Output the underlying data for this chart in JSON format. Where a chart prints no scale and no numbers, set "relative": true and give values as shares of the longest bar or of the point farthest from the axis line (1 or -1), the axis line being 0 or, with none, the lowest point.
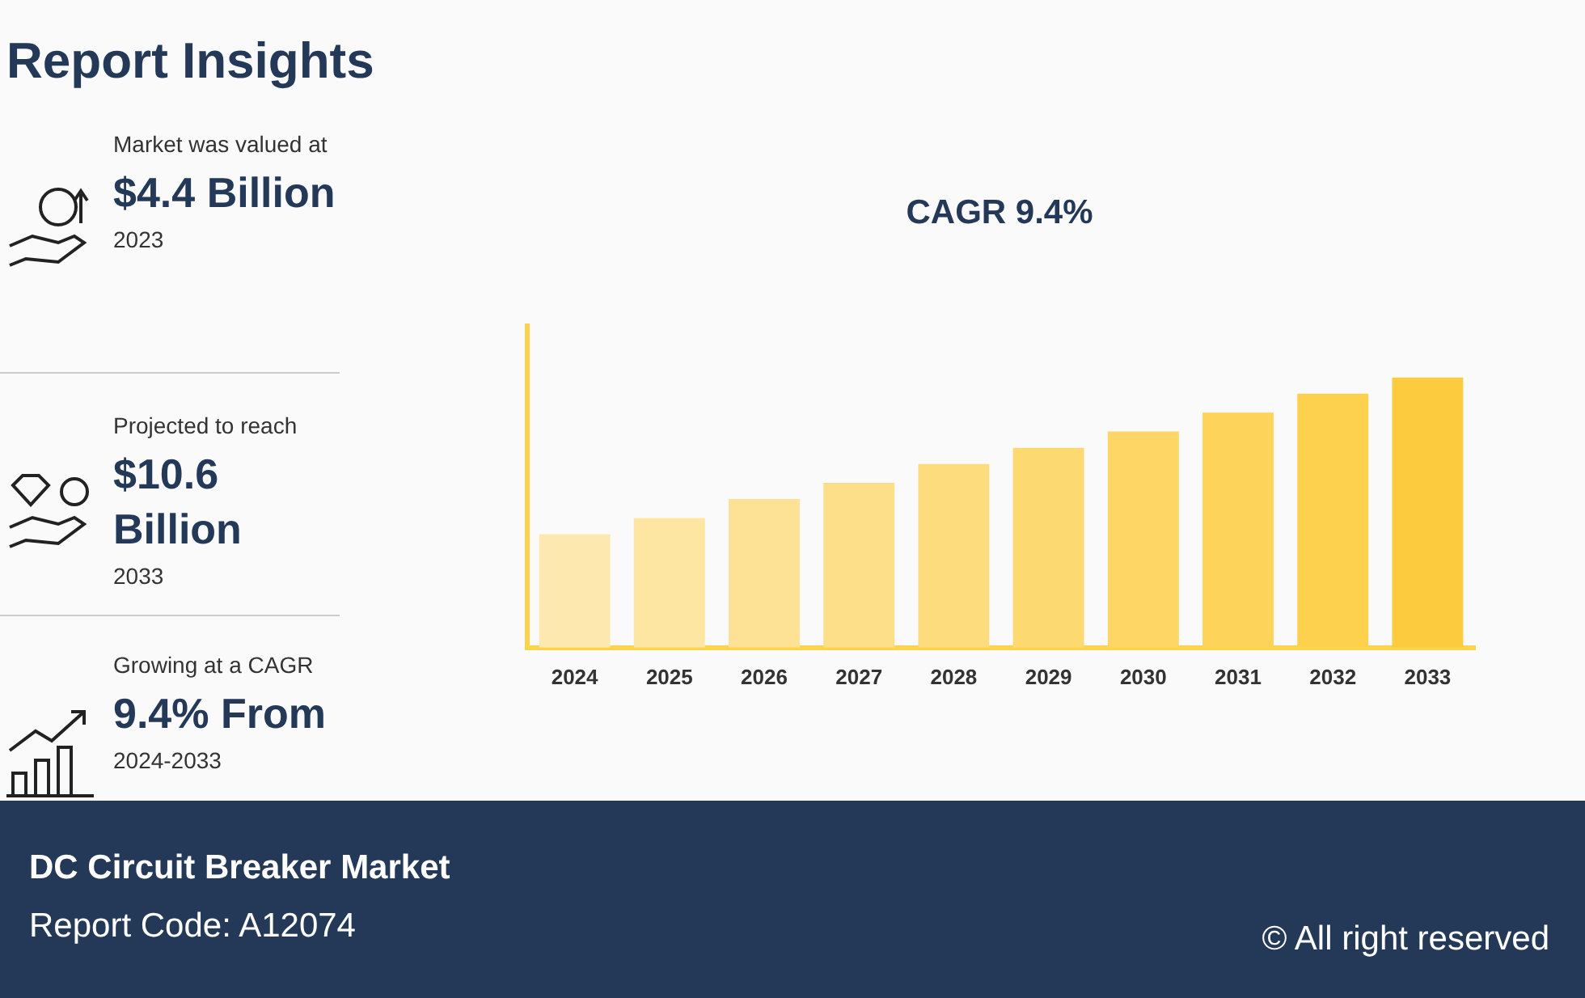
{
  "chart_data": {
    "type": "bar",
    "title": "Report Insights",
    "subtitle": "CAGR 9.4%",
    "categories": [
      "2024",
      "2025",
      "2026",
      "2027",
      "2028",
      "2029",
      "2030",
      "2031",
      "2032",
      "2033"
    ],
    "values": [
      0.42,
      0.48,
      0.55,
      0.61,
      0.68,
      0.74,
      0.8,
      0.87,
      0.94,
      1
    ],
    "colors": [
      "#fde9b0",
      "#fde5a2",
      "#fde296",
      "#fddf8a",
      "#fddc7e",
      "#fdd972",
      "#fdd666",
      "#fdd35a",
      "#fdd04e",
      "#fdcc3e"
    ],
    "relative": true,
    "grid": false,
    "legend": false,
    "annotations": [
      "Market was valued at",
      "$4.4 Billion",
      "2023",
      "Projected to reach",
      "$10.6 Billion",
      "2033",
      "Growing at a CAGR",
      "9.4% From",
      "2024-2033",
      "DC Circuit Breaker Market",
      "Report Code: A12074",
      "© All right reserved"
    ]
  }
}
